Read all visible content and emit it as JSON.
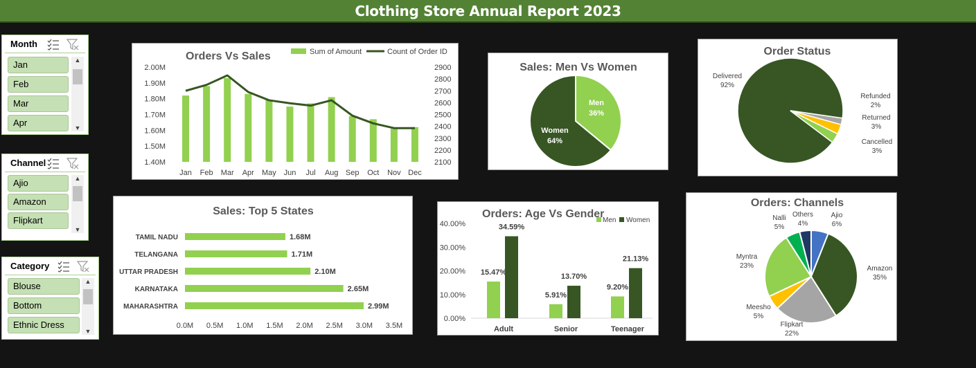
{
  "title": "Clothing Store Annual Report 2023",
  "slicers": {
    "month": {
      "label": "Month",
      "items": [
        "Jan",
        "Feb",
        "Mar",
        "Apr"
      ]
    },
    "channel": {
      "label": "Channel",
      "items": [
        "Ajio",
        "Amazon",
        "Flipkart"
      ]
    },
    "category": {
      "label": "Category",
      "items": [
        "Blouse",
        "Bottom",
        "Ethnic Dress"
      ]
    }
  },
  "colors": {
    "dark_green": "#375623",
    "light_green": "#92d050",
    "title_bg": "#548235",
    "grey": "#a5a5a5",
    "yellow": "#ffc000",
    "blue": "#4472c4",
    "teal_green": "#00b050",
    "navy": "#1f3864"
  },
  "chart_data": [
    {
      "type": "bar+line",
      "title": "Orders Vs Sales",
      "categories": [
        "Jan",
        "Feb",
        "Mar",
        "Apr",
        "May",
        "Jun",
        "Jul",
        "Aug",
        "Sep",
        "Oct",
        "Nov",
        "Dec"
      ],
      "series": [
        {
          "name": "Sum of Amount",
          "axis": "left",
          "values": [
            1.82,
            1.88,
            1.93,
            1.83,
            1.79,
            1.75,
            1.77,
            1.81,
            1.69,
            1.67,
            1.61,
            1.62
          ]
        },
        {
          "name": "Count of Order ID",
          "axis": "right",
          "values": [
            2700,
            2750,
            2830,
            2690,
            2620,
            2595,
            2575,
            2620,
            2490,
            2425,
            2385,
            2385
          ]
        }
      ],
      "y_ticks": [
        "1.40M",
        "1.50M",
        "1.60M",
        "1.70M",
        "1.80M",
        "1.90M",
        "2.00M"
      ],
      "ylim": [
        1.4,
        2.0
      ],
      "y2_ticks": [
        "2100",
        "2200",
        "2300",
        "2400",
        "2500",
        "2600",
        "2700",
        "2800",
        "2900"
      ],
      "y2lim": [
        2100,
        2900
      ],
      "legend": "top"
    },
    {
      "type": "pie",
      "title": "Sales: Men Vs Women",
      "labels": [
        "Men",
        "Women"
      ],
      "values": [
        36,
        64
      ],
      "value_labels": [
        "36%",
        "64%"
      ]
    },
    {
      "type": "pie",
      "title": "Order Status",
      "labels": [
        "Delivered",
        "Refunded",
        "Returned",
        "Cancelled"
      ],
      "values": [
        92,
        2,
        3,
        3
      ],
      "value_labels": [
        "92%",
        "2%",
        "3%",
        "3%"
      ]
    },
    {
      "type": "bar",
      "orientation": "horizontal",
      "title": "Sales: Top 5 States",
      "categories": [
        "TAMIL NADU",
        "TELANGANA",
        "UTTAR PRADESH",
        "KARNATAKA",
        "MAHARASHTRA"
      ],
      "values": [
        1.68,
        1.71,
        2.1,
        2.65,
        2.99
      ],
      "value_labels": [
        "1.68M",
        "1.71M",
        "2.10M",
        "2.65M",
        "2.99M"
      ],
      "x_ticks": [
        "0.0M",
        "0.5M",
        "1.0M",
        "1.5M",
        "2.0M",
        "2.5M",
        "3.0M",
        "3.5M"
      ],
      "xlim": [
        0,
        3.5
      ]
    },
    {
      "type": "bar",
      "title": "Orders: Age Vs Gender",
      "categories": [
        "Adult",
        "Senior",
        "Teenager"
      ],
      "series": [
        {
          "name": "Men",
          "values": [
            15.47,
            5.91,
            9.2
          ],
          "value_labels": [
            "15.47%",
            "5.91%",
            "9.20%"
          ]
        },
        {
          "name": "Women",
          "values": [
            34.59,
            13.7,
            21.13
          ],
          "value_labels": [
            "34.59%",
            "13.70%",
            "21.13%"
          ]
        }
      ],
      "y_ticks": [
        "0.00%",
        "10.00%",
        "20.00%",
        "30.00%",
        "40.00%"
      ],
      "ylim": [
        0,
        40
      ],
      "legend": "top-right"
    },
    {
      "type": "pie",
      "title": "Orders: Channels",
      "labels": [
        "Ajio",
        "Amazon",
        "Flipkart",
        "Meesho",
        "Myntra",
        "Nalli",
        "Others"
      ],
      "values": [
        6,
        35,
        22,
        5,
        23,
        5,
        4
      ],
      "value_labels": [
        "6%",
        "35%",
        "22%",
        "5%",
        "23%",
        "5%",
        "4%"
      ]
    }
  ]
}
